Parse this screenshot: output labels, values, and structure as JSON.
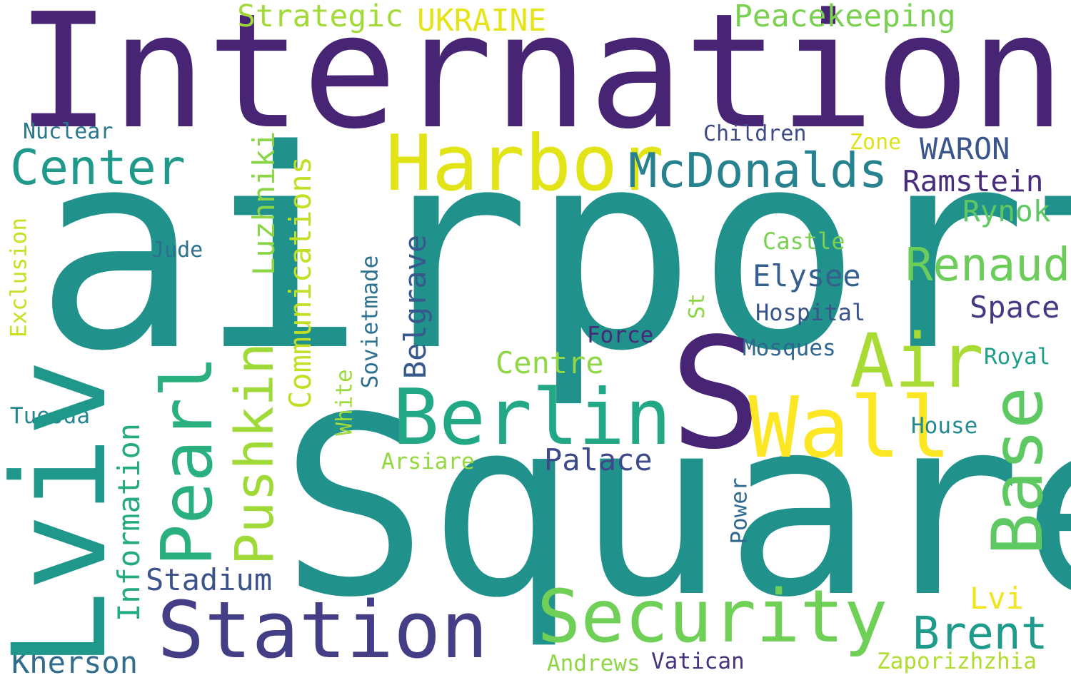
{
  "palette": {
    "dark-purple": "#482475",
    "indigo": "#414487",
    "slate": "#355f8d",
    "teal-blue": "#2a788e",
    "teal": "#21918c",
    "green-teal": "#22a884",
    "green": "#44bf70",
    "light-green": "#7ad151",
    "lime": "#bddf26",
    "yellow": "#fde725"
  },
  "words": {
    "international": "International",
    "airport": "airport",
    "square": "Square",
    "lviv": "Lviv",
    "s": "S",
    "harbor": "Harbor",
    "center": "Center",
    "mcdonalds": "McDonalds",
    "berlin": "Berlin",
    "wall": "Wall",
    "air": "Air",
    "base": "Base",
    "station": "Station",
    "security": "Security",
    "pearl": "Pearl",
    "pushkin": "Pushkin",
    "strategic": "Strategic",
    "ukraine": "UKRAINE",
    "peacekeeping": "Peacekeeping",
    "nuclear": "Nuclear",
    "children": "Children",
    "zone": "Zone",
    "waron": "WARON",
    "ramstein": "Ramstein",
    "rynok": "Rynok",
    "luzhniki": "Luzhniki",
    "communications": "Communications",
    "castle": "Castle",
    "renaud": "Renaud",
    "elysee": "Elysee",
    "jude": "Jude",
    "exclusion": "Exclusion",
    "belgrave": "Belgrave",
    "sovietmade": "Sovietmade",
    "st": "St",
    "hospital": "Hospital",
    "space": "Space",
    "force": "Force",
    "mosques": "Mosques",
    "royal": "Royal",
    "centre": "Centre",
    "white": "White",
    "tuesda": "Tuesda",
    "information": "Information",
    "house": "House",
    "arsiare": "Arsiare",
    "palace": "Palace",
    "power": "Power",
    "stadium": "Stadium",
    "lvi": "Lvi",
    "brent": "Brent",
    "kherson": "Kherson",
    "andrews": "Andrews",
    "vatican": "Vatican",
    "zaporizhzhia": "Zaporizhzhia"
  }
}
